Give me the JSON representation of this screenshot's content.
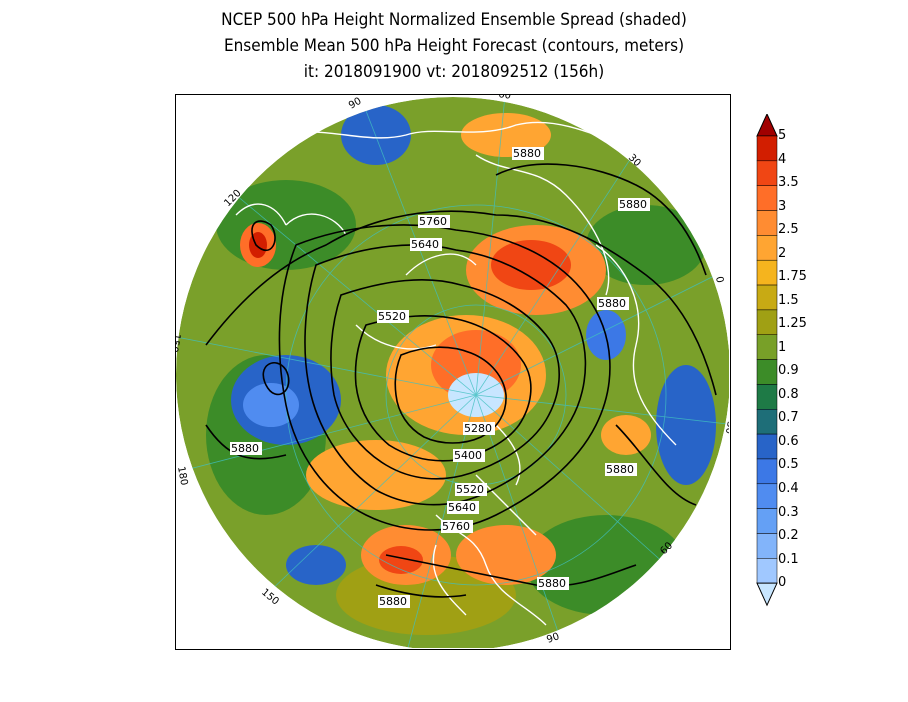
{
  "title": {
    "line1": "NCEP 500 hPa Height Normalized Ensemble Spread (shaded)",
    "line2": "Ensemble Mean 500 hPa Height Forecast (contours, meters)",
    "line3": "it: 2018091900      vt: 2018092512 (156h)"
  },
  "colorbar": {
    "levels": [
      "5",
      "4",
      "3.5",
      "3",
      "2.5",
      "2",
      "1.75",
      "1.5",
      "1.25",
      "1",
      "0.9",
      "0.8",
      "0.7",
      "0.6",
      "0.5",
      "0.4",
      "0.3",
      "0.2",
      "0.1",
      "0"
    ],
    "colors": [
      "#a00000",
      "#d21e00",
      "#f04614",
      "#ff6e28",
      "#ff8c32",
      "#ffa532",
      "#f5b41e",
      "#c8aa14",
      "#a0a014",
      "#78a028",
      "#3c8c28",
      "#1e7a46",
      "#1e6e78",
      "#2864c8",
      "#3c78e6",
      "#508cf0",
      "#64a0f5",
      "#82b4fa",
      "#a0c8ff",
      "#c8e6ff"
    ]
  },
  "contour_labels": [
    {
      "text": "5880",
      "id": "c1"
    },
    {
      "text": "5880",
      "id": "c2"
    },
    {
      "text": "5760",
      "id": "c3"
    },
    {
      "text": "5640",
      "id": "c4"
    },
    {
      "text": "5880",
      "id": "c5"
    },
    {
      "text": "5520",
      "id": "c6"
    },
    {
      "text": "5880",
      "id": "c7"
    },
    {
      "text": "5280",
      "id": "c8"
    },
    {
      "text": "5400",
      "id": "c9"
    },
    {
      "text": "5880",
      "id": "c10"
    },
    {
      "text": "5520",
      "id": "c11"
    },
    {
      "text": "5640",
      "id": "c12"
    },
    {
      "text": "5760",
      "id": "c13"
    },
    {
      "text": "5880",
      "id": "c14"
    },
    {
      "text": "5880",
      "id": "c15"
    }
  ],
  "meridian_labels": [
    "60",
    "30",
    "0",
    "30",
    "60",
    "90",
    "120",
    "150",
    "180",
    "150",
    "120",
    "90"
  ]
}
